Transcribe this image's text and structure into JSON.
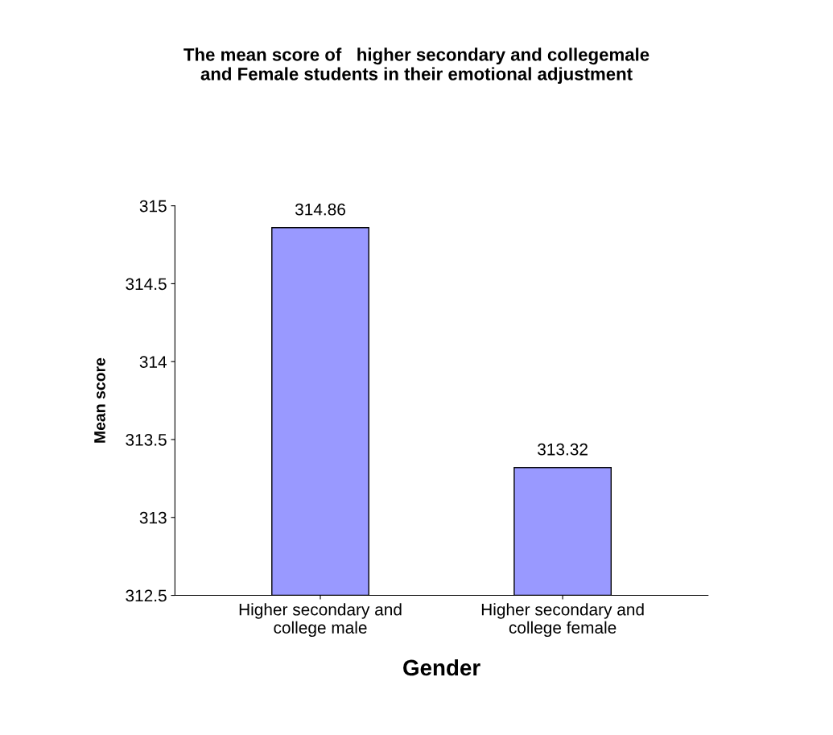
{
  "chart_data": {
    "type": "bar",
    "title": "The mean score of   higher secondary and collegemale\nand Female students in their emotional adjustment",
    "xlabel": "Gender",
    "ylabel": "Mean score",
    "categories": [
      "Higher secondary and\ncollege male",
      "Higher secondary and\ncollege female"
    ],
    "values": [
      314.86,
      313.32
    ],
    "color": "#9999ff",
    "ylim": [
      312.5,
      315
    ],
    "yticks": [
      312.5,
      313,
      313.5,
      314,
      314.5,
      315
    ],
    "data_labels": true,
    "grid": false,
    "legend": false
  }
}
